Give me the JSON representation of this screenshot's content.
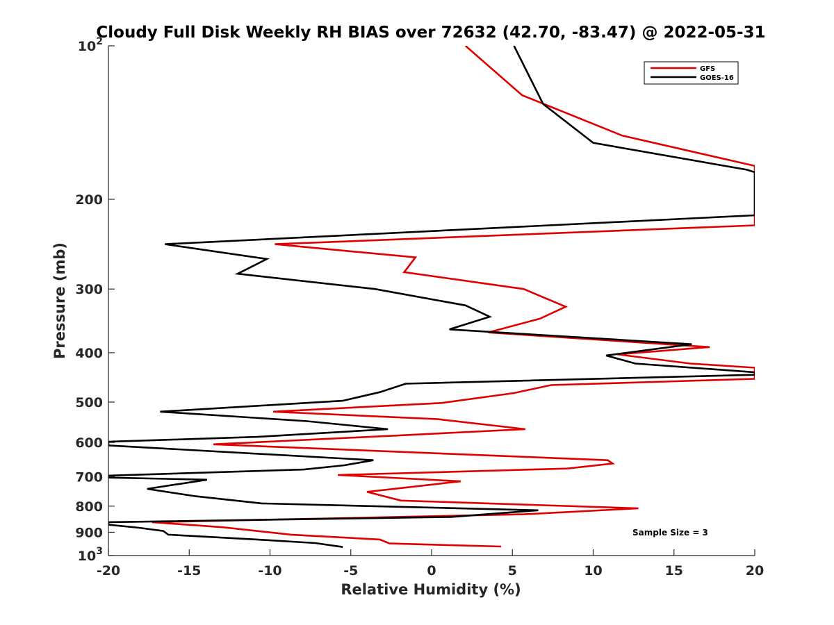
{
  "chart_data": {
    "type": "line",
    "title": "Cloudy Full Disk Weekly RH BIAS over 72632 (42.70, -83.47) @ 2022-05-31",
    "xlabel": "Relative Humidity (%)",
    "ylabel": "Pressure (mb)",
    "xlim": [
      -20,
      20
    ],
    "ylim": [
      100,
      1000
    ],
    "y_scale": "log",
    "y_reversed": true,
    "x_ticks": [
      -20,
      -15,
      -10,
      -5,
      0,
      5,
      10,
      15,
      20
    ],
    "x_tick_labels": [
      "-20",
      "-15",
      "-10",
      "-5",
      "0",
      "5",
      "10",
      "15",
      "20"
    ],
    "y_ticks": [
      100,
      200,
      300,
      400,
      500,
      600,
      700,
      800,
      900,
      1000
    ],
    "y_tick_labels": [
      {
        "base": "10",
        "exp": "2"
      },
      {
        "base": "200",
        "exp": ""
      },
      {
        "base": "300",
        "exp": ""
      },
      {
        "base": "400",
        "exp": ""
      },
      {
        "base": "500",
        "exp": ""
      },
      {
        "base": "600",
        "exp": ""
      },
      {
        "base": "700",
        "exp": ""
      },
      {
        "base": "800",
        "exp": ""
      },
      {
        "base": "900",
        "exp": ""
      },
      {
        "base": "10",
        "exp": "3"
      }
    ],
    "grid": false,
    "legend_position": "top-right",
    "annotation": "Sample Size = 3",
    "series": [
      {
        "name": "GFS",
        "color": "#e00000",
        "points": [
          [
            2.1,
            100
          ],
          [
            5.6,
            125
          ],
          [
            11.8,
            150
          ],
          [
            20,
            172
          ],
          [
            20,
            225
          ],
          [
            -9.7,
            245
          ],
          [
            -1.0,
            260
          ],
          [
            -1.7,
            278
          ],
          [
            5.7,
            300
          ],
          [
            8.3,
            325
          ],
          [
            6.7,
            343
          ],
          [
            3.5,
            365
          ],
          [
            17.2,
            390
          ],
          [
            11.5,
            403
          ],
          [
            16.0,
            420
          ],
          [
            20,
            428
          ],
          [
            20,
            450
          ],
          [
            7.4,
            463
          ],
          [
            5.1,
            480
          ],
          [
            0.6,
            502
          ],
          [
            -9.8,
            522
          ],
          [
            0.4,
            540
          ],
          [
            5.8,
            565
          ],
          [
            -1.5,
            580
          ],
          [
            -13.5,
            605
          ],
          [
            10.9,
            650
          ],
          [
            11.2,
            660
          ],
          [
            8.4,
            675
          ],
          [
            -5.8,
            695
          ],
          [
            1.8,
            715
          ],
          [
            -4.0,
            750
          ],
          [
            -1.9,
            780
          ],
          [
            12.8,
            808
          ],
          [
            5.7,
            830
          ],
          [
            -17.3,
            860
          ],
          [
            -12.9,
            880
          ],
          [
            -8.7,
            910
          ],
          [
            -3.2,
            930
          ],
          [
            -2.6,
            947
          ],
          [
            4.3,
            960
          ]
        ]
      },
      {
        "name": "GOES-16",
        "color": "#000000",
        "points": [
          [
            5.1,
            100
          ],
          [
            6.9,
            130
          ],
          [
            10.0,
            155
          ],
          [
            19.5,
            175
          ],
          [
            20,
            177
          ],
          [
            20,
            215
          ],
          [
            -16.5,
            245
          ],
          [
            -10.2,
            262
          ],
          [
            -12.0,
            280
          ],
          [
            -3.5,
            300
          ],
          [
            2.1,
            323
          ],
          [
            3.6,
            340
          ],
          [
            1.1,
            360
          ],
          [
            16.1,
            385
          ],
          [
            10.8,
            405
          ],
          [
            12.6,
            420
          ],
          [
            20,
            437
          ],
          [
            20,
            442
          ],
          [
            -1.6,
            460
          ],
          [
            -3.2,
            478
          ],
          [
            -5.5,
            497
          ],
          [
            -16.8,
            522
          ],
          [
            -7.7,
            545
          ],
          [
            -2.7,
            565
          ],
          [
            -10.8,
            585
          ],
          [
            -20,
            598
          ],
          [
            -20,
            608
          ],
          [
            -3.6,
            650
          ],
          [
            -5.4,
            665
          ],
          [
            -7.9,
            678
          ],
          [
            -20,
            697
          ],
          [
            -20,
            703
          ],
          [
            -13.9,
            710
          ],
          [
            -17.6,
            740
          ],
          [
            -14.6,
            765
          ],
          [
            -10.5,
            790
          ],
          [
            6.6,
            815
          ],
          [
            1.2,
            840
          ],
          [
            -20,
            860
          ],
          [
            -20,
            870
          ],
          [
            -18.1,
            882
          ],
          [
            -16.6,
            895
          ],
          [
            -16.3,
            910
          ],
          [
            -10.8,
            930
          ],
          [
            -7.2,
            945
          ],
          [
            -5.5,
            962
          ]
        ]
      }
    ]
  }
}
